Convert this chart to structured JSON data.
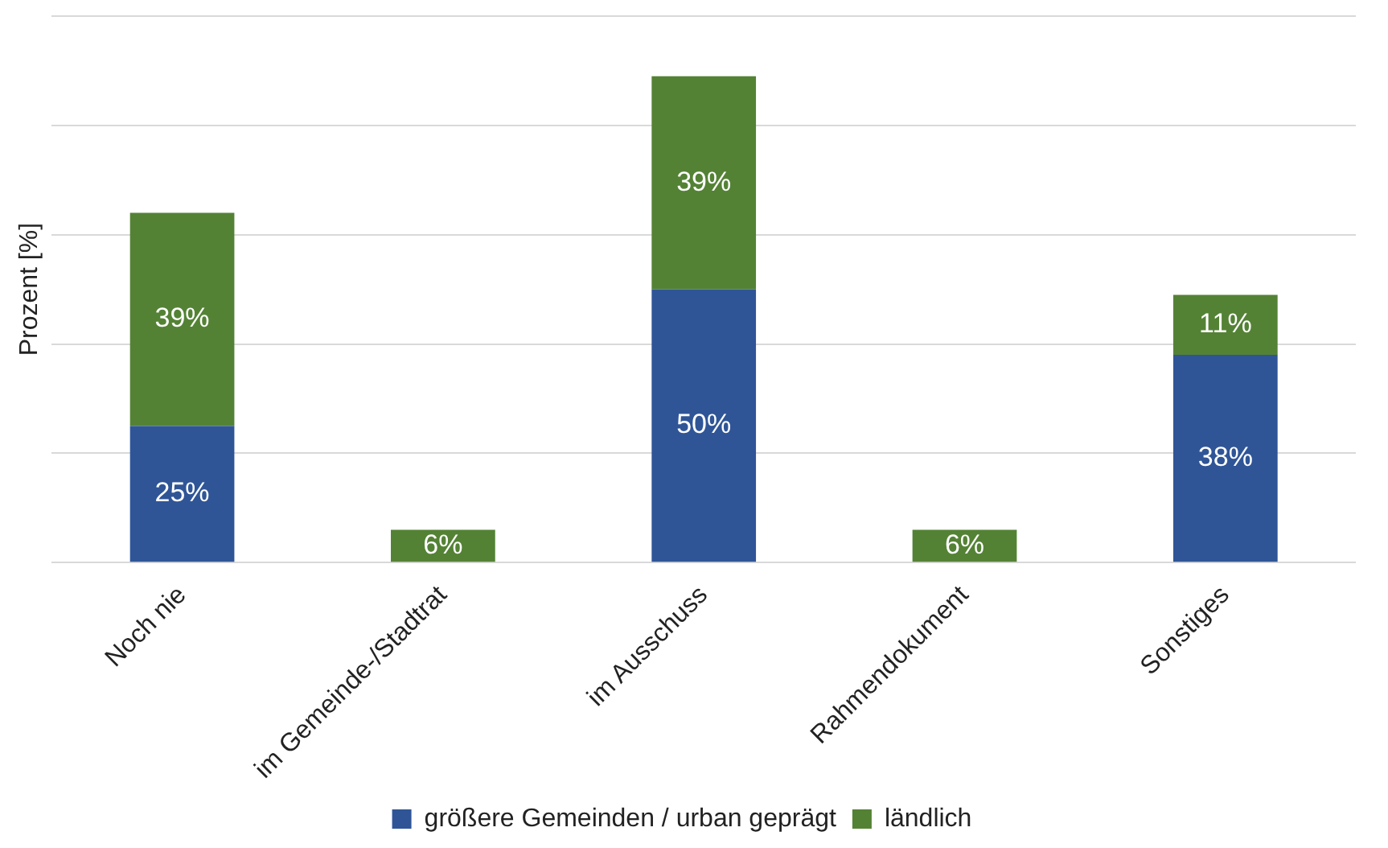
{
  "chart_data": {
    "type": "bar",
    "stacked": true,
    "ylabel": "Prozent [%]",
    "categories": [
      "Noch nie",
      "im Gemeinde-/Stadtrat",
      "im Ausschuss",
      "Rahmendokument",
      "Sonstiges"
    ],
    "series": [
      {
        "name": "größere Gemeinden / urban geprägt",
        "color": "#2f5597",
        "values": [
          25,
          null,
          50,
          null,
          38
        ],
        "value_labels": [
          "25%",
          null,
          "50%",
          null,
          "38%"
        ]
      },
      {
        "name": "ländlich",
        "color": "#548235",
        "values": [
          39,
          6,
          39,
          6,
          11
        ],
        "value_labels": [
          "39%",
          "6%",
          "39%",
          "6%",
          "11%"
        ]
      }
    ],
    "tick_labels": "x",
    "grid": "y",
    "legend": "bottom"
  }
}
